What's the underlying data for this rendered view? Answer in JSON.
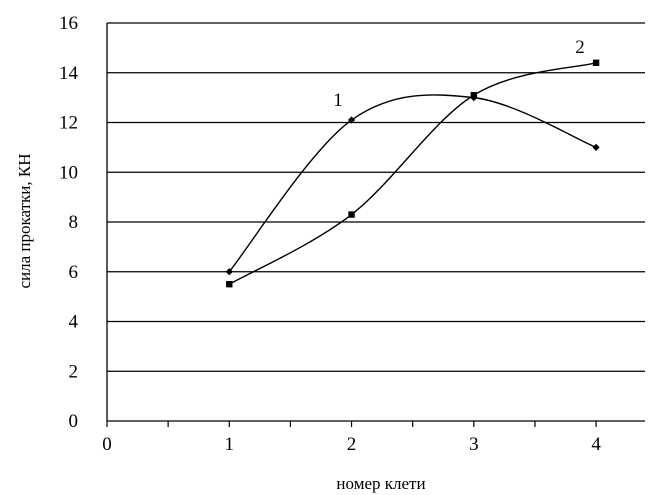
{
  "chart_data": {
    "type": "line",
    "title": "",
    "xlabel": "номер клети",
    "ylabel": "сила прокатки, КН",
    "xlim": [
      0,
      4.4
    ],
    "ylim": [
      0,
      16
    ],
    "x_ticks": [
      "0",
      "1",
      "2",
      "3",
      "4"
    ],
    "y_ticks": [
      "0",
      "2",
      "4",
      "6",
      "8",
      "10",
      "12",
      "14",
      "16"
    ],
    "grid": "horizontal",
    "legend": "none",
    "series": [
      {
        "name": "1",
        "marker": "diamond",
        "color": "#000000",
        "points": [
          [
            1,
            6.0
          ],
          [
            2,
            12.1
          ],
          [
            3,
            13.0
          ],
          [
            4,
            11.0
          ]
        ]
      },
      {
        "name": "2",
        "marker": "square",
        "color": "#000000",
        "points": [
          [
            1,
            5.5
          ],
          [
            2,
            8.3
          ],
          [
            3,
            13.1
          ],
          [
            4,
            14.4
          ]
        ]
      }
    ]
  }
}
